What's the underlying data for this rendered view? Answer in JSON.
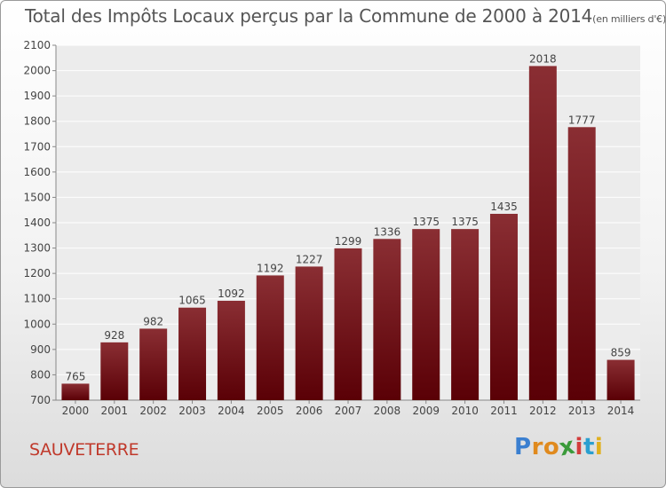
{
  "title": "Total des Impôts Locaux perçus par la Commune de 2000 à 2014",
  "title_unit": "(en milliers d'€)",
  "commune": "SAUVETERRE",
  "logo": {
    "letters": [
      "P",
      "r",
      "o",
      "x",
      "i",
      "t",
      "i"
    ],
    "colors": [
      "#3a7fd0",
      "#e08a1e",
      "#e08a1e",
      "#3a9a3a",
      "#d23c3c",
      "#2a9fd0",
      "#e0b01e"
    ]
  },
  "colors": {
    "bar_top": "#8a2e33",
    "bar_bottom": "#5a0006",
    "commune_text": "#c0392b"
  },
  "chart_data": {
    "type": "bar",
    "title": "Total des Impôts Locaux perçus par la Commune de 2000 à 2014",
    "categories": [
      "2000",
      "2001",
      "2002",
      "2003",
      "2004",
      "2005",
      "2006",
      "2007",
      "2008",
      "2009",
      "2010",
      "2011",
      "2012",
      "2013",
      "2014"
    ],
    "values": [
      765,
      928,
      982,
      1065,
      1092,
      1192,
      1227,
      1299,
      1336,
      1375,
      1375,
      1435,
      2018,
      1777,
      859
    ],
    "ylim": [
      700,
      2100
    ],
    "yticks": [
      700,
      800,
      900,
      1000,
      1100,
      1200,
      1300,
      1400,
      1500,
      1600,
      1700,
      1800,
      1900,
      2000,
      2100
    ],
    "grid": true,
    "xlabel": "",
    "ylabel": ""
  }
}
